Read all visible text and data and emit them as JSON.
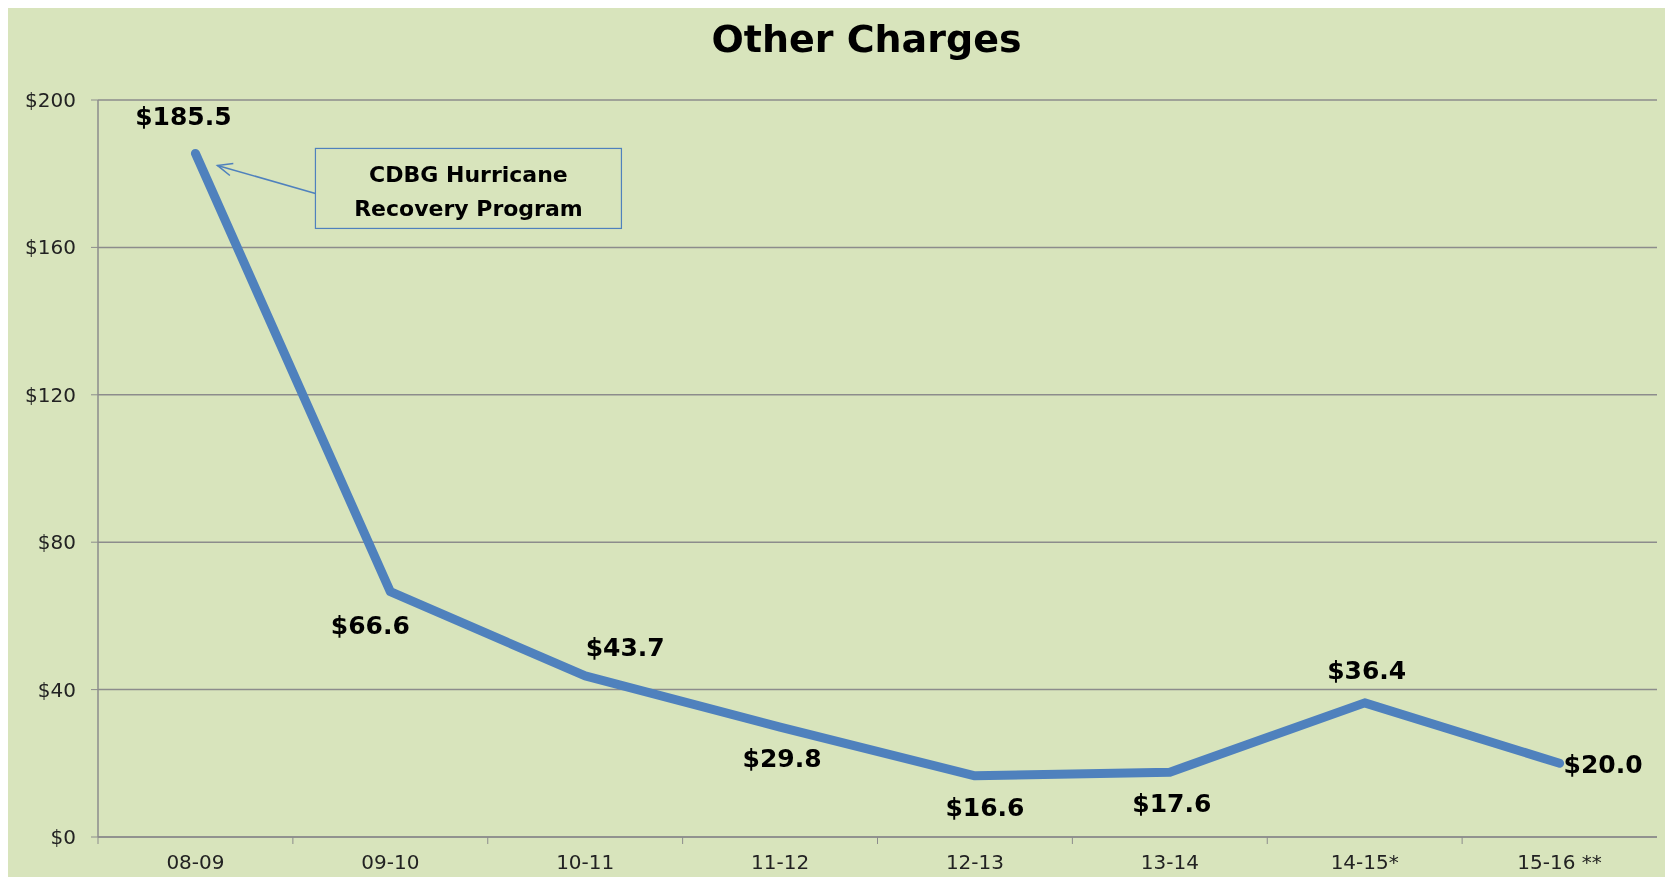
{
  "chart_data": {
    "type": "line",
    "title": "Other Charges",
    "categories": [
      "08-09",
      "09-10",
      "10-11",
      "11-12",
      "12-13",
      "13-14",
      "14-15*",
      "15-16 **"
    ],
    "series": [
      {
        "color": "#4f81bd",
        "values": [
          185.5,
          66.6,
          43.7,
          29.8,
          16.6,
          17.6,
          36.4,
          20.0
        ],
        "value_labels": [
          "$185.5",
          "$66.6",
          "$43.7",
          "$29.8",
          "$16.6",
          "$17.6",
          "$36.4",
          "$20.0"
        ]
      }
    ],
    "ylim": [
      0,
      200
    ],
    "yticks": [
      {
        "value": 0,
        "label": "$0"
      },
      {
        "value": 40,
        "label": "$40"
      },
      {
        "value": 80,
        "label": "$80"
      },
      {
        "value": 120,
        "label": "$120"
      },
      {
        "value": 160,
        "label": "$160"
      },
      {
        "value": 200,
        "label": "$200"
      }
    ],
    "grid": "y",
    "marker": "none",
    "line_style": "solid",
    "annotations": [
      "CDBG Hurricane Recovery Program"
    ]
  }
}
